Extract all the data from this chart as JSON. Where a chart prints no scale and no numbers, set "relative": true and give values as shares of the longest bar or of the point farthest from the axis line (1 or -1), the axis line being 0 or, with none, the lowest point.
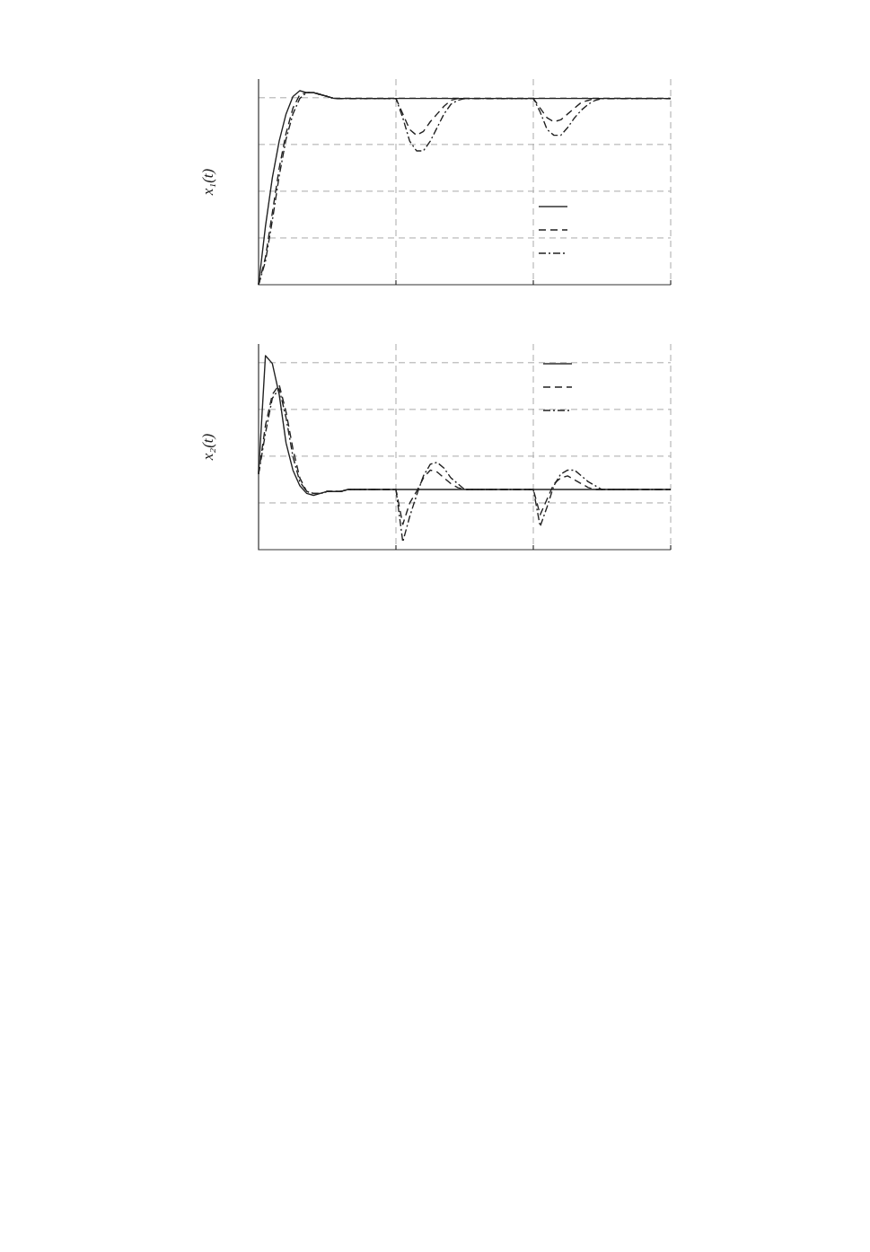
{
  "chart_data": [
    {
      "type": "line",
      "ylabel": "x₁(t)",
      "relative": true,
      "grid": true,
      "tick_labels": false,
      "marker": "none",
      "categories": [
        null,
        null,
        null,
        null,
        null,
        null,
        null,
        null,
        null,
        null,
        null,
        null,
        null,
        null,
        null,
        null,
        null,
        null,
        null,
        null,
        null,
        null,
        null,
        null,
        null,
        null,
        null,
        null,
        null,
        null,
        null,
        null,
        null,
        null,
        null,
        null,
        null,
        null,
        null,
        null,
        null,
        null,
        null,
        null,
        null,
        null,
        null,
        null,
        null,
        null,
        null,
        null,
        null,
        null,
        null,
        null,
        null,
        null,
        null,
        null,
        null
      ],
      "series": [
        {
          "color": "#222222",
          "line_style": "solid",
          "values": [
            0,
            0.3,
            0.55,
            0.74,
            0.88,
            0.97,
            1,
            0.99,
            0.99,
            0.98,
            0.97,
            0.96,
            0.96,
            0.96,
            0.96,
            0.96,
            0.96,
            0.96,
            0.96,
            0.96,
            0.96,
            0.96,
            0.96,
            0.96,
            0.96,
            0.96,
            0.96,
            0.96,
            0.96,
            0.96,
            0.96,
            0.96,
            0.96,
            0.96,
            0.96,
            0.96,
            0.96,
            0.96,
            0.96,
            0.96,
            0.96,
            0.96,
            0.96,
            0.96,
            0.96,
            0.96,
            0.96,
            0.96,
            0.96,
            0.96,
            0.96,
            0.96,
            0.96,
            0.96,
            0.96,
            0.96,
            0.96,
            0.96,
            0.96,
            0.96,
            0.96
          ]
        },
        {
          "color": "#222222",
          "line_style": "dashed",
          "values": [
            0,
            0.14,
            0.37,
            0.6,
            0.78,
            0.91,
            0.98,
            0.99,
            0.99,
            0.98,
            0.97,
            0.96,
            0.96,
            0.96,
            0.96,
            0.96,
            0.96,
            0.96,
            0.96,
            0.96,
            0.96,
            0.88,
            0.8,
            0.77,
            0.79,
            0.84,
            0.88,
            0.92,
            0.95,
            0.96,
            0.96,
            0.96,
            0.96,
            0.96,
            0.96,
            0.96,
            0.96,
            0.96,
            0.96,
            0.96,
            0.96,
            0.91,
            0.86,
            0.84,
            0.85,
            0.88,
            0.91,
            0.94,
            0.95,
            0.96,
            0.96,
            0.96,
            0.96,
            0.96,
            0.96,
            0.96,
            0.96,
            0.96,
            0.96,
            0.96,
            0.96
          ]
        },
        {
          "color": "#222222",
          "line_style": "dashdot",
          "values": [
            0,
            0.12,
            0.33,
            0.56,
            0.75,
            0.88,
            0.96,
            0.99,
            0.99,
            0.98,
            0.97,
            0.96,
            0.96,
            0.96,
            0.96,
            0.96,
            0.96,
            0.96,
            0.96,
            0.96,
            0.96,
            0.86,
            0.74,
            0.69,
            0.69,
            0.74,
            0.81,
            0.88,
            0.93,
            0.95,
            0.96,
            0.96,
            0.96,
            0.96,
            0.96,
            0.96,
            0.96,
            0.96,
            0.96,
            0.96,
            0.96,
            0.89,
            0.8,
            0.77,
            0.77,
            0.81,
            0.86,
            0.9,
            0.93,
            0.95,
            0.96,
            0.96,
            0.96,
            0.96,
            0.96,
            0.96,
            0.96,
            0.96,
            0.96,
            0.96,
            0.96
          ]
        }
      ]
    },
    {
      "type": "line",
      "ylabel": "x₂(t)",
      "relative": true,
      "grid": true,
      "tick_labels": false,
      "marker": "none",
      "categories": [
        null,
        null,
        null,
        null,
        null,
        null,
        null,
        null,
        null,
        null,
        null,
        null,
        null,
        null,
        null,
        null,
        null,
        null,
        null,
        null,
        null,
        null,
        null,
        null,
        null,
        null,
        null,
        null,
        null,
        null,
        null,
        null,
        null,
        null,
        null,
        null,
        null,
        null,
        null,
        null,
        null,
        null,
        null,
        null,
        null,
        null,
        null,
        null,
        null,
        null,
        null,
        null,
        null,
        null,
        null,
        null,
        null,
        null,
        null,
        null,
        null
      ],
      "series": [
        {
          "color": "#222222",
          "line_style": "solid",
          "values": [
            0.39,
            1,
            0.96,
            0.8,
            0.55,
            0.41,
            0.33,
            0.29,
            0.28,
            0.29,
            0.3,
            0.3,
            0.3,
            0.31,
            0.31,
            0.31,
            0.31,
            0.31,
            0.31,
            0.31,
            0.31,
            0.31,
            0.31,
            0.31,
            0.31,
            0.31,
            0.31,
            0.31,
            0.31,
            0.31,
            0.31,
            0.31,
            0.31,
            0.31,
            0.31,
            0.31,
            0.31,
            0.31,
            0.31,
            0.31,
            0.31,
            0.31,
            0.31,
            0.31,
            0.31,
            0.31,
            0.31,
            0.31,
            0.31,
            0.31,
            0.31,
            0.31,
            0.31,
            0.31,
            0.31,
            0.31,
            0.31,
            0.31,
            0.31,
            0.31,
            0.31
          ]
        },
        {
          "color": "#222222",
          "line_style": "dashed",
          "values": [
            0.39,
            0.64,
            0.8,
            0.85,
            0.71,
            0.52,
            0.37,
            0.3,
            0.29,
            0.29,
            0.3,
            0.3,
            0.3,
            0.31,
            0.31,
            0.31,
            0.31,
            0.31,
            0.31,
            0.31,
            0.31,
            0.13,
            0.24,
            0.3,
            0.37,
            0.41,
            0.4,
            0.37,
            0.34,
            0.32,
            0.31,
            0.31,
            0.31,
            0.31,
            0.31,
            0.31,
            0.31,
            0.31,
            0.31,
            0.31,
            0.31,
            0.18,
            0.26,
            0.34,
            0.37,
            0.38,
            0.36,
            0.34,
            0.32,
            0.31,
            0.31,
            0.31,
            0.31,
            0.31,
            0.31,
            0.31,
            0.31,
            0.31,
            0.31,
            0.31,
            0.31
          ]
        },
        {
          "color": "#222222",
          "line_style": "dashdot",
          "values": [
            0.39,
            0.6,
            0.78,
            0.83,
            0.68,
            0.48,
            0.35,
            0.3,
            0.29,
            0.29,
            0.3,
            0.3,
            0.3,
            0.31,
            0.31,
            0.31,
            0.31,
            0.31,
            0.31,
            0.31,
            0.31,
            0.04,
            0.17,
            0.28,
            0.38,
            0.44,
            0.45,
            0.42,
            0.37,
            0.34,
            0.31,
            0.31,
            0.31,
            0.31,
            0.31,
            0.31,
            0.31,
            0.31,
            0.31,
            0.31,
            0.31,
            0.12,
            0.22,
            0.33,
            0.39,
            0.41,
            0.41,
            0.38,
            0.35,
            0.33,
            0.31,
            0.31,
            0.31,
            0.31,
            0.31,
            0.31,
            0.31,
            0.31,
            0.31,
            0.31,
            0.31
          ]
        }
      ]
    }
  ]
}
